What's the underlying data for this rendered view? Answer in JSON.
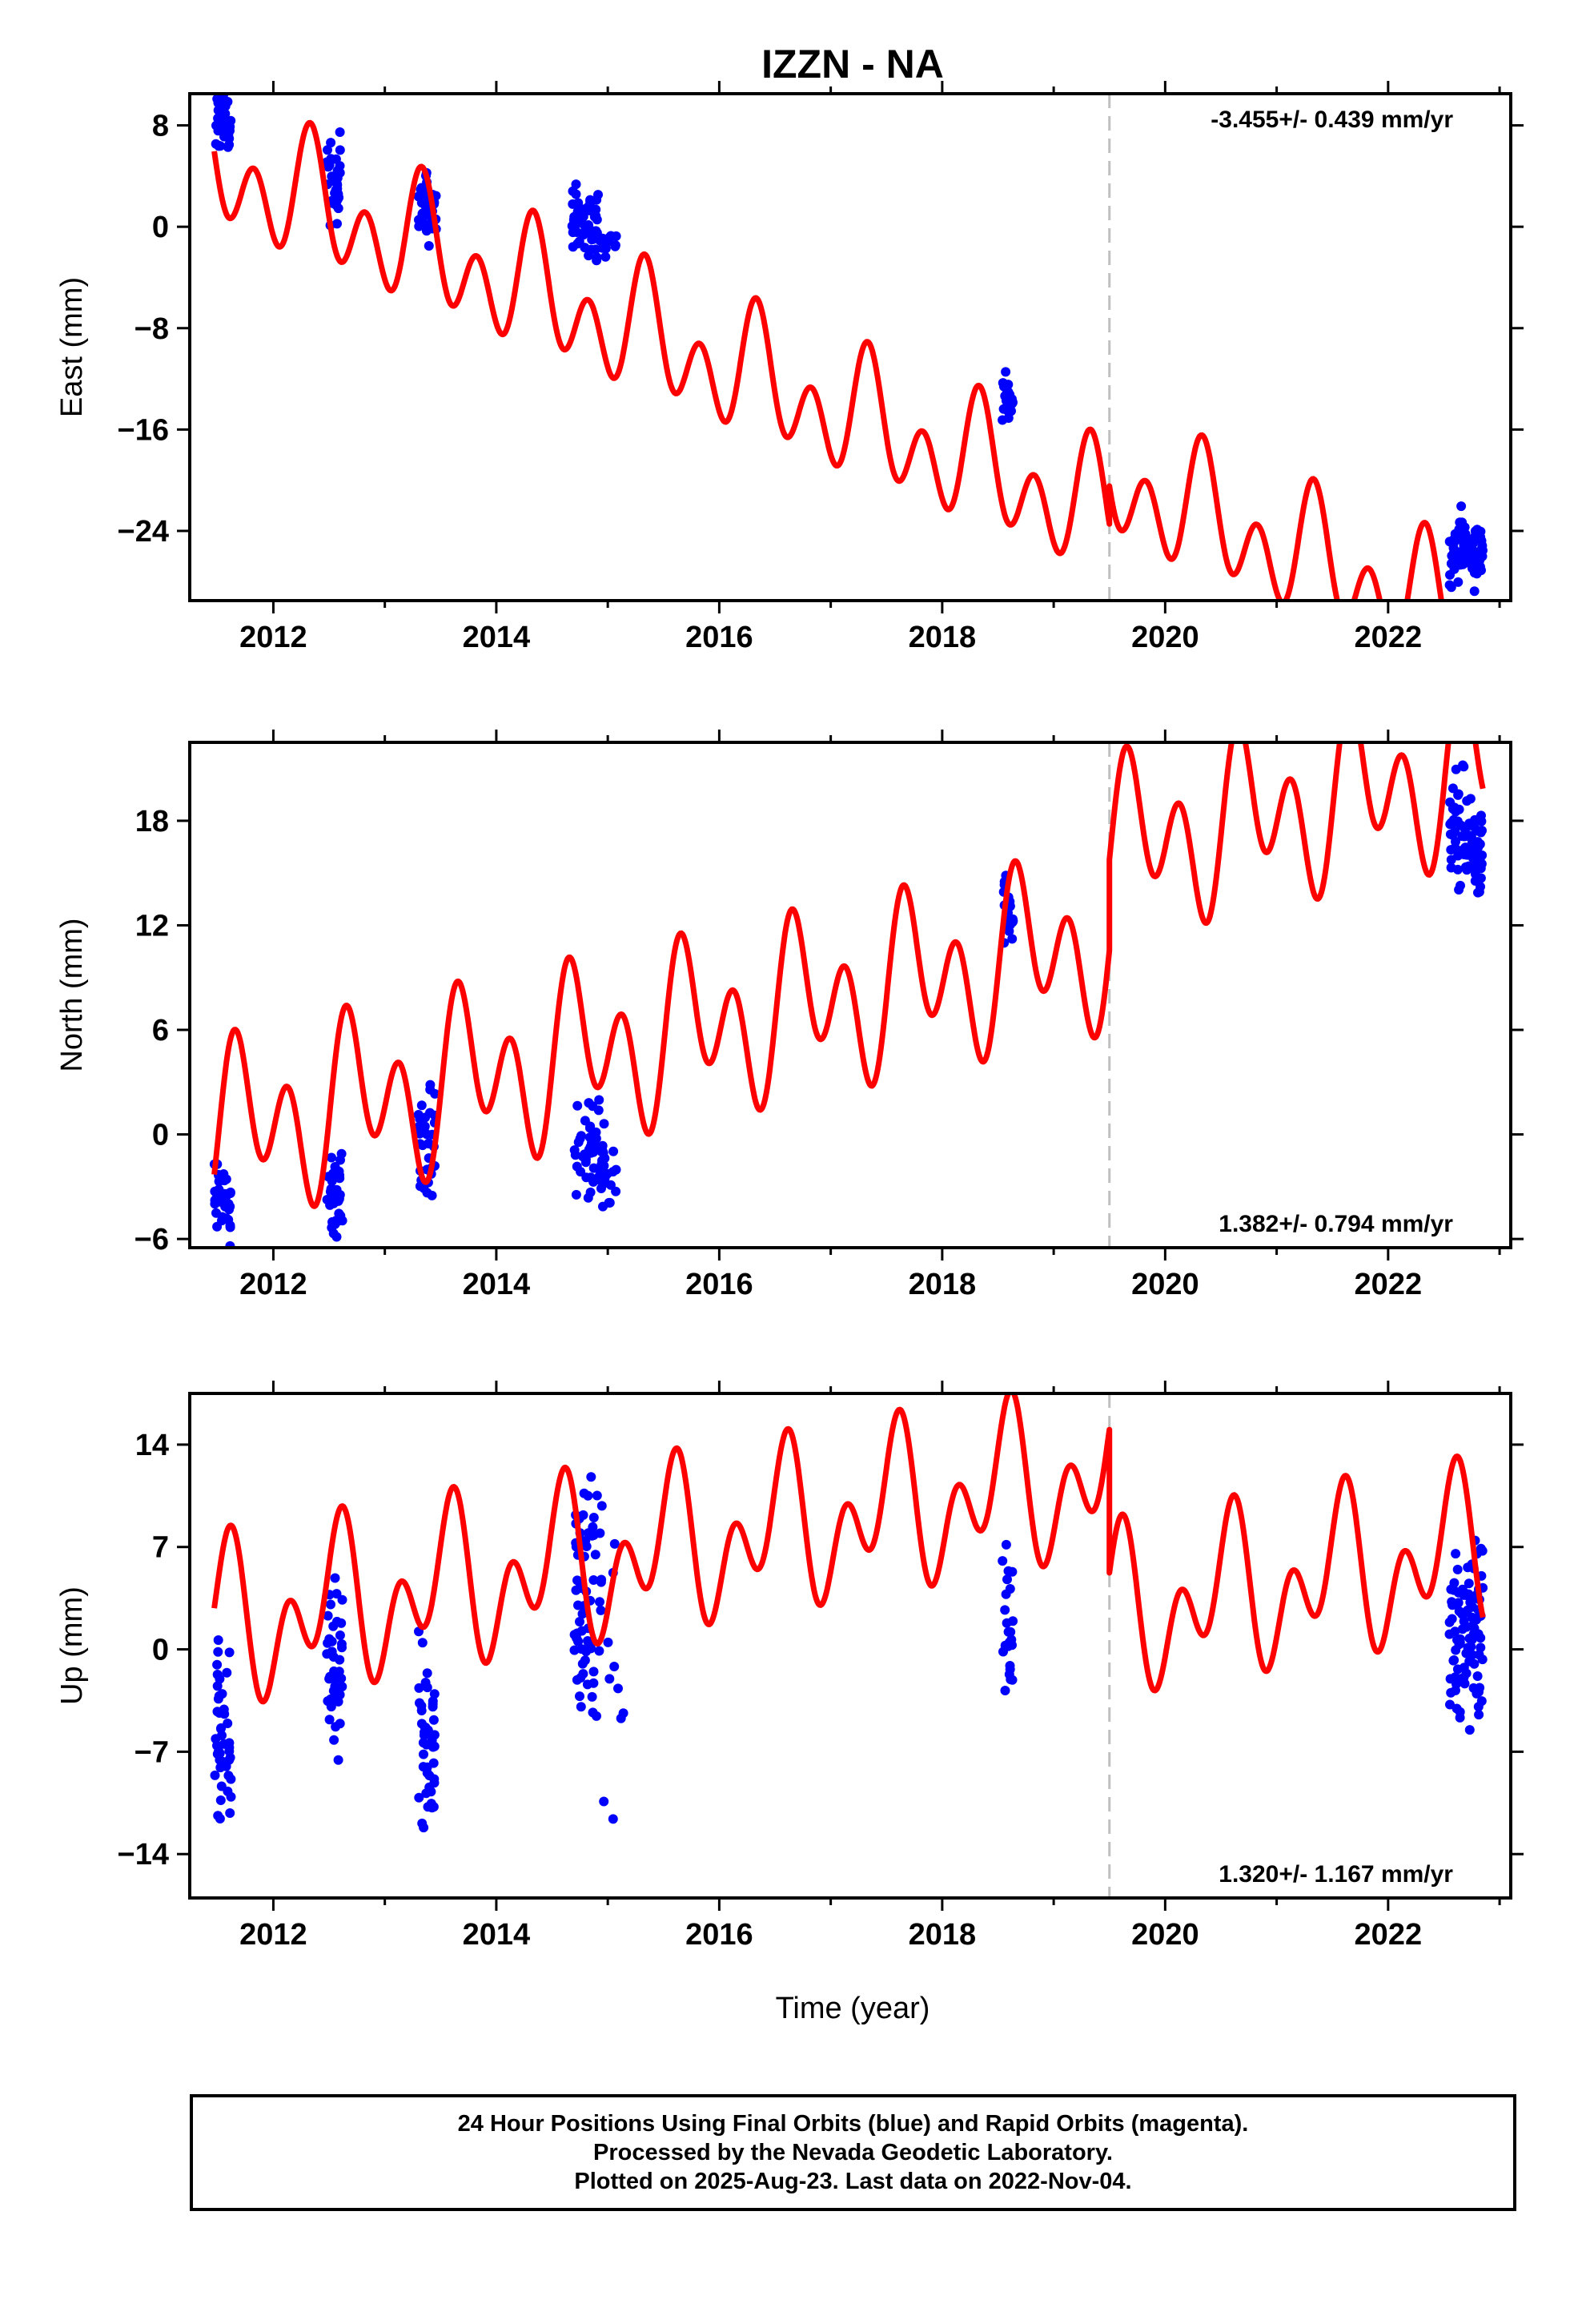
{
  "chart_data": {
    "type": "scatter",
    "title": "IZZN - NA",
    "xlabel": "Time (year)",
    "xlim": [
      2011.25,
      2023.1
    ],
    "x_ticks": [
      2012,
      2014,
      2016,
      2018,
      2020,
      2022
    ],
    "offset_epoch": 2019.5,
    "colors": {
      "data": "#0000ff",
      "model": "#ff0000",
      "offset_line": "#c0c0c0"
    },
    "panels": [
      {
        "ylabel": "East (mm)",
        "rate": "-3.455+/- 0.439 mm/yr",
        "rate_position": "top-right",
        "ylim": [
          -29.5,
          10.5
        ],
        "y_ticks": [
          8,
          0,
          -8,
          -16,
          -24
        ],
        "model": {
          "a": 2.93,
          "b": -3.455,
          "c": -2.7,
          "s": 1.0,
          "k": 3.6,
          "phi": 0.4,
          "step": 3.0
        },
        "clusters": [
          {
            "t0": 2011.47,
            "t1": 2011.62,
            "center": 8.3,
            "spread": 1.2,
            "slope": 0,
            "n": 45
          },
          {
            "t0": 2012.48,
            "t1": 2012.6,
            "center": 3.8,
            "spread": 1.6,
            "slope": 0,
            "n": 40
          },
          {
            "t0": 2013.3,
            "t1": 2013.46,
            "center": 1.2,
            "spread": 1.3,
            "slope": 0,
            "n": 40
          },
          {
            "t0": 2014.68,
            "t1": 2014.92,
            "center": 0.5,
            "spread": 1.2,
            "slope": -4,
            "n": 60
          },
          {
            "t0": 2014.92,
            "t1": 2015.08,
            "center": -1.3,
            "spread": 0.7,
            "slope": 0,
            "n": 12
          },
          {
            "t0": 2018.54,
            "t1": 2018.64,
            "center": -13.6,
            "spread": 1.0,
            "slope": 0,
            "n": 25
          },
          {
            "t0": 2022.55,
            "t1": 2022.85,
            "center": -25.5,
            "spread": 1.3,
            "slope": 0,
            "n": 90
          }
        ]
      },
      {
        "ylabel": "North (mm)",
        "rate": "1.382+/- 0.794 mm/yr",
        "rate_position": "bottom-right",
        "ylim": [
          -6.5,
          22.5
        ],
        "y_ticks": [
          18,
          12,
          6,
          0,
          -6
        ],
        "model": {
          "a": 0.8,
          "b": 1.382,
          "c": 2.58,
          "s": 3.6,
          "k": 0.6,
          "phi": 0.5,
          "step": 5.2
        },
        "clusters": [
          {
            "t0": 2011.47,
            "t1": 2011.62,
            "center": -3.6,
            "spread": 1.1,
            "slope": 0,
            "n": 40
          },
          {
            "t0": 2012.48,
            "t1": 2012.62,
            "center": -3.3,
            "spread": 1.2,
            "slope": 0,
            "n": 40
          },
          {
            "t0": 2013.3,
            "t1": 2013.45,
            "center": -0.5,
            "spread": 1.7,
            "slope": 0,
            "n": 40
          },
          {
            "t0": 2014.7,
            "t1": 2014.98,
            "center": -1.3,
            "spread": 1.4,
            "slope": 0,
            "n": 60
          },
          {
            "t0": 2014.98,
            "t1": 2015.1,
            "center": -2.5,
            "spread": 1.0,
            "slope": 0,
            "n": 8
          },
          {
            "t0": 2018.55,
            "t1": 2018.64,
            "center": 12.4,
            "spread": 1.0,
            "slope": 0,
            "n": 25
          },
          {
            "t0": 2022.55,
            "t1": 2022.85,
            "center": 17.0,
            "spread": 1.6,
            "slope": -6,
            "n": 90
          }
        ]
      },
      {
        "ylabel": "Up (mm)",
        "rate": "1.320+/- 1.167 mm/yr",
        "rate_position": "bottom-right",
        "ylim": [
          -17,
          17.5
        ],
        "y_ticks": [
          14,
          7,
          0,
          -7,
          -14
        ],
        "model": {
          "a": 2.2,
          "b": 1.32,
          "c": -3.36,
          "s": -3.2,
          "k": 2.0,
          "phi": 0.2,
          "step": -9.8
        },
        "clusters": [
          {
            "t0": 2011.47,
            "t1": 2011.62,
            "center": -6.0,
            "spread": 3.0,
            "slope": 0,
            "n": 45
          },
          {
            "t0": 2012.48,
            "t1": 2012.62,
            "center": -1.5,
            "spread": 2.6,
            "slope": 0,
            "n": 45
          },
          {
            "t0": 2013.3,
            "t1": 2013.45,
            "center": -6.2,
            "spread": 3.0,
            "slope": 0,
            "n": 45
          },
          {
            "t0": 2014.7,
            "t1": 2014.95,
            "center": 3.5,
            "spread": 4.0,
            "slope": 0,
            "n": 70
          },
          {
            "t0": 2014.95,
            "t1": 2015.15,
            "center": -1.0,
            "spread": 4.5,
            "slope": 0,
            "n": 10
          },
          {
            "t0": 2018.54,
            "t1": 2018.64,
            "center": 1.5,
            "spread": 2.5,
            "slope": 0,
            "n": 25
          },
          {
            "t0": 2022.55,
            "t1": 2022.85,
            "center": 1.5,
            "spread": 3.5,
            "slope": 0,
            "n": 100
          }
        ]
      }
    ]
  },
  "footer": {
    "lines": [
      "24 Hour Positions Using Final Orbits (blue) and Rapid Orbits (magenta).",
      "Processed by the Nevada Geodetic Laboratory.",
      "Plotted on 2025-Aug-23. Last data on 2022-Nov-04."
    ]
  }
}
